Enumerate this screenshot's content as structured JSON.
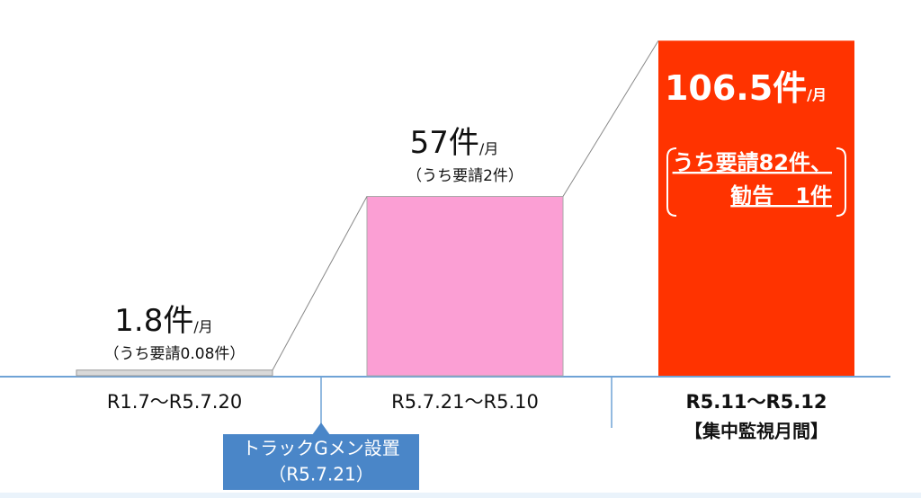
{
  "chart_data": {
    "type": "bar",
    "categories": [
      "R1.7～R5.7.20",
      "R5.7.21～R5.10",
      "R5.11～R5.12"
    ],
    "category_note": "【集中監視月間】",
    "values": [
      1.8,
      57,
      106.5
    ],
    "value_labels": [
      "1.8件",
      "57件",
      "106.5件"
    ],
    "unit_label": "/月",
    "sub_labels": [
      "（うち要請0.08件）",
      "（うち要請2件）"
    ],
    "detail_lines": [
      "うち要請82件、",
      "勧告　1件"
    ],
    "colors": [
      "#d9d9d9",
      "#fb9fd4",
      "#ff3300"
    ],
    "annotation": {
      "lines": [
        "トラックGメン設置",
        "（R5.7.21）"
      ],
      "color": "#4a86c8"
    }
  }
}
